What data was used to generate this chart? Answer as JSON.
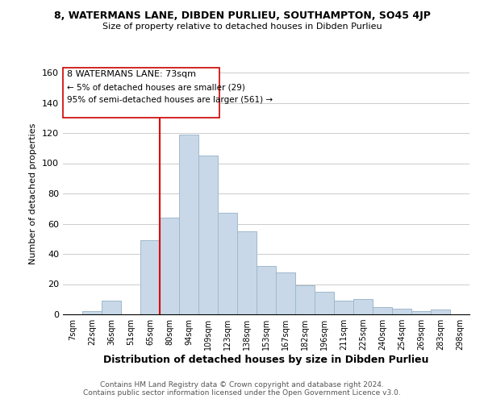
{
  "title": "8, WATERMANS LANE, DIBDEN PURLIEU, SOUTHAMPTON, SO45 4JP",
  "subtitle": "Size of property relative to detached houses in Dibden Purlieu",
  "xlabel": "Distribution of detached houses by size in Dibden Purlieu",
  "ylabel": "Number of detached properties",
  "bar_color": "#c8d8e8",
  "bar_edge_color": "#a0b8cc",
  "categories": [
    "7sqm",
    "22sqm",
    "36sqm",
    "51sqm",
    "65sqm",
    "80sqm",
    "94sqm",
    "109sqm",
    "123sqm",
    "138sqm",
    "153sqm",
    "167sqm",
    "182sqm",
    "196sqm",
    "211sqm",
    "225sqm",
    "240sqm",
    "254sqm",
    "269sqm",
    "283sqm",
    "298sqm"
  ],
  "values": [
    0,
    2,
    9,
    0,
    49,
    64,
    119,
    105,
    67,
    55,
    32,
    28,
    19,
    15,
    9,
    10,
    5,
    4,
    2,
    3,
    0
  ],
  "ylim": [
    0,
    160
  ],
  "yticks": [
    0,
    20,
    40,
    60,
    80,
    100,
    120,
    140,
    160
  ],
  "vline_x": 4.5,
  "annotation_title": "8 WATERMANS LANE: 73sqm",
  "annotation_line1": "← 5% of detached houses are smaller (29)",
  "annotation_line2": "95% of semi-detached houses are larger (561) →",
  "footer_line1": "Contains HM Land Registry data © Crown copyright and database right 2024.",
  "footer_line2": "Contains public sector information licensed under the Open Government Licence v3.0.",
  "background_color": "#ffffff",
  "grid_color": "#cccccc",
  "vline_color": "#dd0000"
}
